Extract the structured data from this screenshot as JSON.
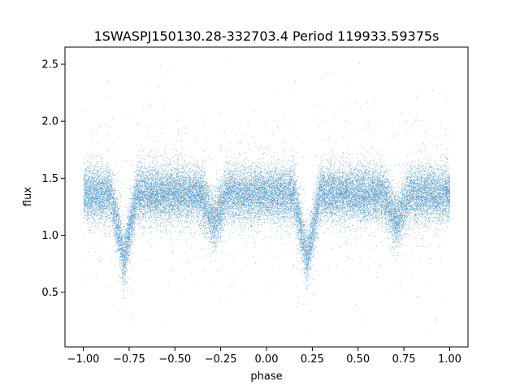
{
  "chart_data": {
    "type": "scatter",
    "title": "1SWASPJ150130.28-332703.4 Period 119933.59375s",
    "xlabel": "phase",
    "ylabel": "flux",
    "xlim": [
      -1.1,
      1.1
    ],
    "ylim": [
      0.02,
      2.65
    ],
    "xticks": [
      -1.0,
      -0.75,
      -0.5,
      -0.25,
      0.0,
      0.25,
      0.5,
      0.75,
      1.0
    ],
    "xtick_labels": [
      "−1.00",
      "−0.75",
      "−0.50",
      "−0.25",
      "0.00",
      "0.25",
      "0.50",
      "0.75",
      "1.00"
    ],
    "yticks": [
      0.5,
      1.0,
      1.5,
      2.0,
      2.5
    ],
    "ytick_labels": [
      "0.5",
      "1.0",
      "1.5",
      "2.0",
      "2.5"
    ],
    "grid": false,
    "marker_color": "#1f77b4",
    "baseline_flux": 1.36,
    "scatter_sd": 0.12,
    "primary_eclipse": {
      "phase": -0.78,
      "min_flux": 0.78,
      "half_width": 0.07
    },
    "secondary_eclipse": {
      "phase": -0.29,
      "min_flux": 1.12,
      "half_width": 0.07
    },
    "phase_repeat": 1.0,
    "n_points": 32000
  }
}
